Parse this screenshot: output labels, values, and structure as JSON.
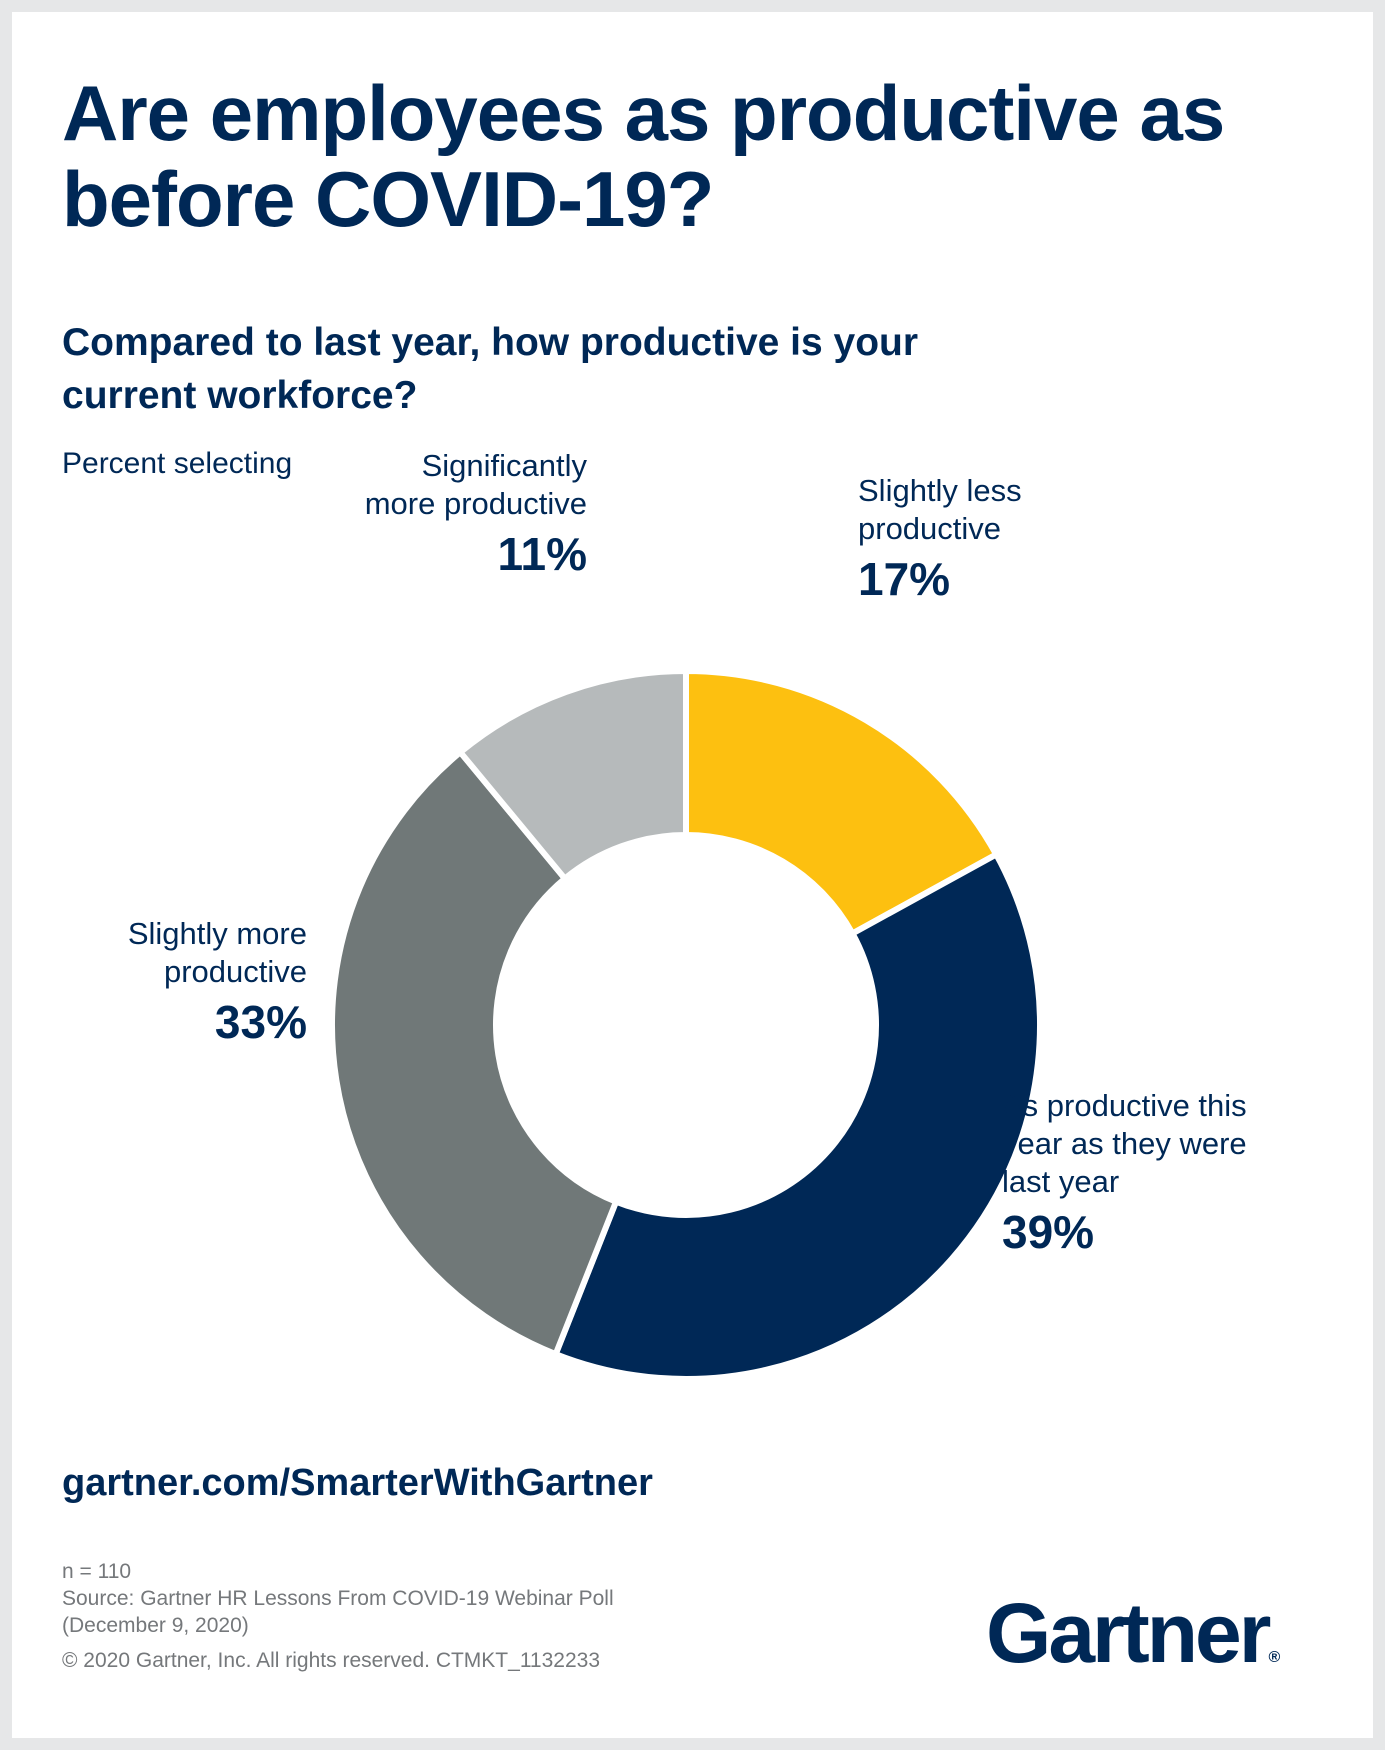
{
  "title": "Are employees as productive as before COVID-19?",
  "question": "Compared to last year, how productive is your current workforce?",
  "units": "Percent selecting",
  "link": "gartner.com/SmarterWithGartner",
  "footer": {
    "n": "n = 110",
    "source_line1": "Source: Gartner HR Lessons From COVID-19 Webinar Poll",
    "source_line2": "(December 9, 2020)",
    "copyright": "© 2020 Gartner, Inc. All rights reserved. CTMKT_1132233"
  },
  "logo": {
    "text": "Gartner",
    "mark": "®"
  },
  "chart_data": {
    "type": "pie",
    "donut": true,
    "title": "Compared to last year, how productive is your current workforce?",
    "units": "Percent selecting",
    "start_at": "12 o'clock",
    "direction": "clockwise",
    "slices": [
      {
        "label_lines": [
          "Slightly less",
          "productive"
        ],
        "value": 17,
        "display": "17%",
        "color": "#fdc010"
      },
      {
        "label_lines": [
          "As productive this",
          "year as they were",
          "last year"
        ],
        "value": 39,
        "display": "39%",
        "color": "#002856"
      },
      {
        "label_lines": [
          "Slightly more",
          "productive"
        ],
        "value": 33,
        "display": "33%",
        "color": "#707878"
      },
      {
        "label_lines": [
          "Significantly",
          "more productive"
        ],
        "value": 11,
        "display": "11%",
        "color": "#b6babb"
      }
    ]
  }
}
